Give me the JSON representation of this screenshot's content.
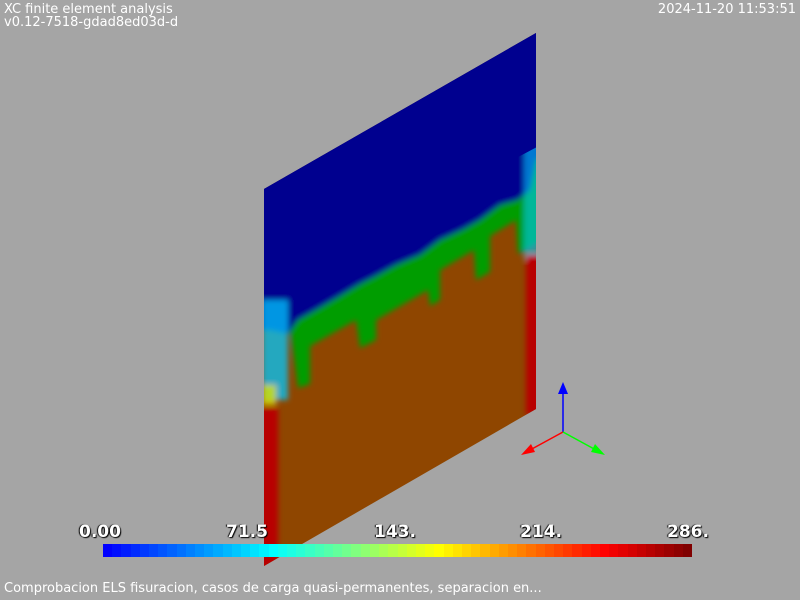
{
  "header": {
    "app_title": "XC finite element analysis",
    "version": "v0.12-7518-gdad8ed03d-d",
    "timestamp": "2024-11-20 11:53:51"
  },
  "caption": "Comprobacion ELS fisuracion, casos de carga quasi-permanentes, separacion en...",
  "colorbar": {
    "tick_labels": [
      "0.00",
      "71.5",
      "143.",
      "214.",
      "286."
    ],
    "min": 0.0,
    "max": 286.0,
    "colormap": "jet-rainbow"
  },
  "scene": {
    "background": "#a5a5a5",
    "field_colors": {
      "low": "#00008f",
      "transition": "#009d00",
      "high": "#8f4600",
      "edge_max": "#b80000",
      "edge_mid": "#00c8ff"
    },
    "axes": {
      "x_color": "#ff0000",
      "y_color": "#00ff00",
      "z_color": "#0000ff"
    }
  }
}
